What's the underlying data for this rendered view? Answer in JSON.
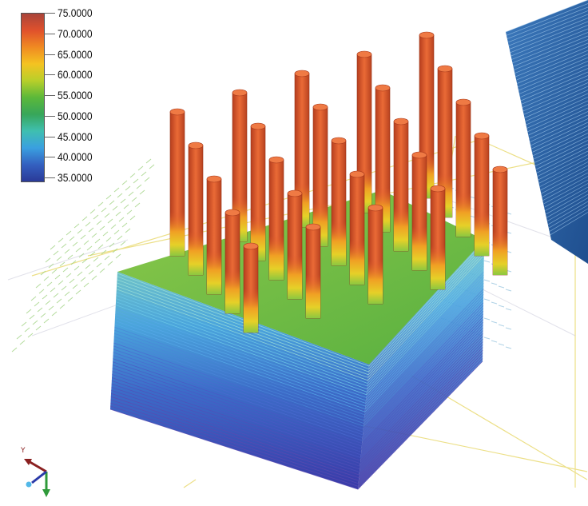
{
  "colorbar": {
    "labels": [
      "75.0000",
      "70.0000",
      "65.0000",
      "60.0000",
      "55.0000",
      "50.0000",
      "45.0000",
      "40.0000",
      "35.0000"
    ],
    "colors": [
      "#a9443a",
      "#e0512c",
      "#f08a22",
      "#f4c321",
      "#b8cf2a",
      "#5bb83a",
      "#37a65a",
      "#3fbfb0",
      "#3aa0e0",
      "#3460c0",
      "#2a3a98"
    ],
    "max": 75,
    "min": 35
  },
  "scene": {
    "fin_color": "#d9562a",
    "base_top_color": "#7cc04a",
    "base_side_colors": [
      "#4fa6d8",
      "#3a66c8",
      "#3a3aa8"
    ],
    "rack_color": "#2f63a8"
  },
  "axes_triad": {
    "y_label": "Y"
  }
}
